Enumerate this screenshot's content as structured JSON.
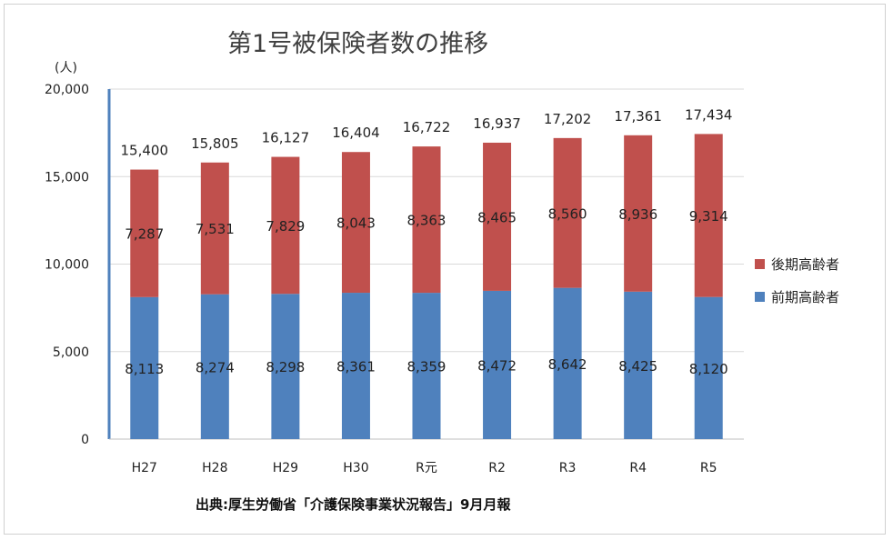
{
  "chart_data": {
    "type": "bar",
    "stacked": true,
    "title": "第1号被保険者数の推移",
    "ylabel": "(人)",
    "source": "出典:厚生労働省「介護保険事業状況報告」9月月報",
    "categories": [
      "H27",
      "H28",
      "H29",
      "H30",
      "R元",
      "R2",
      "R3",
      "R4",
      "R5"
    ],
    "ylim": [
      0,
      20000
    ],
    "yticks": [
      0,
      5000,
      10000,
      15000,
      20000
    ],
    "ytick_labels": [
      "0",
      "5,000",
      "10,000",
      "15,000",
      "20,000"
    ],
    "grid": true,
    "legend_position": "right",
    "series": [
      {
        "name": "前期高齢者",
        "color": "#4f81bd",
        "values": [
          8113,
          8274,
          8298,
          8361,
          8359,
          8472,
          8642,
          8425,
          8120
        ],
        "labels": [
          "8,113",
          "8,274",
          "8,298",
          "8,361",
          "8,359",
          "8,472",
          "8,642",
          "8,425",
          "8,120"
        ]
      },
      {
        "name": "後期高齢者",
        "color": "#c0504d",
        "values": [
          7287,
          7531,
          7829,
          8043,
          8363,
          8465,
          8560,
          8936,
          9314
        ],
        "labels": [
          "7,287",
          "7,531",
          "7,829",
          "8,043",
          "8,363",
          "8,465",
          "8,560",
          "8,936",
          "9,314"
        ]
      }
    ],
    "totals": [
      15400,
      15805,
      16127,
      16404,
      16722,
      16937,
      17202,
      17361,
      17434
    ],
    "total_labels": [
      "15,400",
      "15,805",
      "16,127",
      "16,404",
      "16,722",
      "16,937",
      "17,202",
      "17,361",
      "17,434"
    ]
  }
}
